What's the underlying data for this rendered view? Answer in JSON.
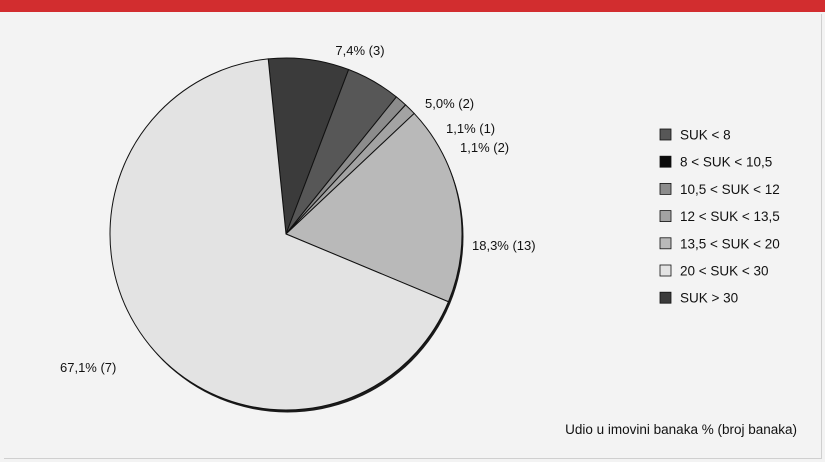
{
  "chart_data": {
    "type": "pie",
    "slices": [
      {
        "legend": "SUK < 8",
        "value": 5.0,
        "label": "5,0% (2)",
        "color": "#575757"
      },
      {
        "legend": "8 < SUK < 10,5",
        "value": 0.0,
        "label": "",
        "color": "#0b0b0b"
      },
      {
        "legend": "10,5 < SUK < 12",
        "value": 1.1,
        "label": "1,1% (1)",
        "color": "#8c8c8c"
      },
      {
        "legend": "12 < SUK < 13,5",
        "value": 1.1,
        "label": "1,1% (2)",
        "color": "#a3a3a3"
      },
      {
        "legend": "13,5 < SUK < 20",
        "value": 18.3,
        "label": "18,3% (13)",
        "color": "#b9b9b9"
      },
      {
        "legend": "20 < SUK < 30",
        "value": 67.1,
        "label": "67,1% (7)",
        "color": "#e3e3e3"
      },
      {
        "legend": "SUK > 30",
        "value": 7.4,
        "label": "7,4% (3)",
        "color": "#3b3b3b"
      }
    ],
    "note": "Udio u imovini banaka % (broj banaka)",
    "legend_position": "right"
  }
}
